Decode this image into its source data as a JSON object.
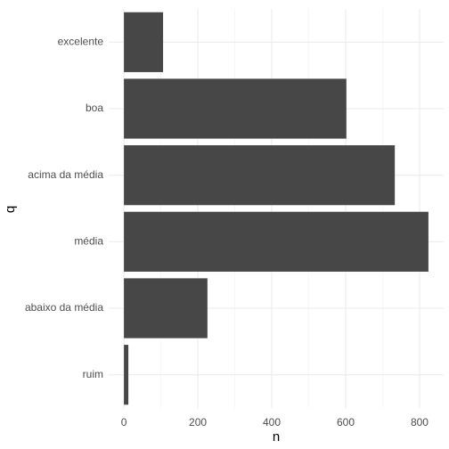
{
  "chart_data": {
    "type": "barh",
    "categories": [
      "excelente",
      "boa",
      "acima da média",
      "média",
      "abaixo da média",
      "ruim"
    ],
    "values": [
      106,
      602,
      733,
      824,
      226,
      12
    ],
    "color": "#474747",
    "xlabel": "n",
    "ylabel": "q",
    "xlim": [
      -41.2,
      865.2
    ],
    "xticks": [
      0,
      200,
      400,
      600,
      800
    ],
    "grid": true
  }
}
